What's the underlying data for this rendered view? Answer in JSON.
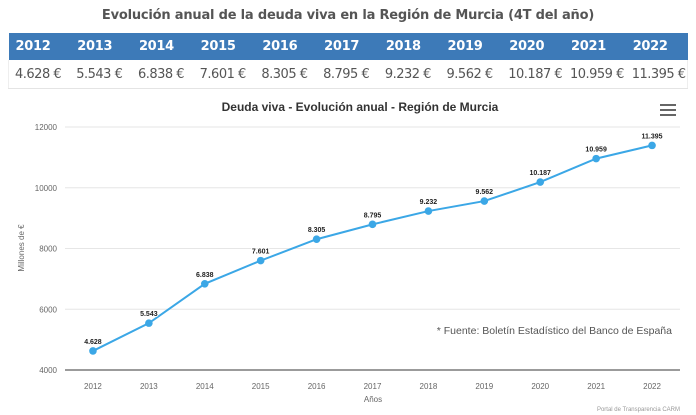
{
  "page": {
    "title": "Evolución anual de la deuda viva en la Región de Murcia (4T del año)"
  },
  "table": {
    "years": [
      "2012",
      "2013",
      "2014",
      "2015",
      "2016",
      "2017",
      "2018",
      "2019",
      "2020",
      "2021",
      "2022"
    ],
    "values": [
      "4.628 €",
      "5.543 €",
      "6.838 €",
      "7.601 €",
      "8.305 €",
      "8.795 €",
      "9.232 €",
      "9.562 €",
      "10.187 €",
      "10.959 €",
      "11.395 €"
    ],
    "header_color": "#3d7ab8"
  },
  "chart_data": {
    "type": "line",
    "title": "Deuda viva - Evolución anual - Región de Murcia",
    "xlabel": "Años",
    "ylabel": "Millones de €",
    "categories": [
      "2012",
      "2013",
      "2014",
      "2015",
      "2016",
      "2017",
      "2018",
      "2019",
      "2020",
      "2021",
      "2022"
    ],
    "series": [
      {
        "name": "Deuda viva",
        "values": [
          4628,
          5543,
          6838,
          7601,
          8305,
          8795,
          9232,
          9562,
          10187,
          10959,
          11395
        ],
        "labels": [
          "4.628",
          "5.543",
          "6.838",
          "7.601",
          "8.305",
          "8.795",
          "9.232",
          "9.562",
          "10.187",
          "10.959",
          "11.395"
        ],
        "color": "#3ba7e6"
      }
    ],
    "ylim": [
      4000,
      12000
    ],
    "yticks": [
      4000,
      6000,
      8000,
      10000,
      12000
    ],
    "grid": true,
    "legend": "none",
    "annotation": "* Fuente: Boletín Estadístico del Banco de España",
    "credits": "Portal de Transparencia CARM",
    "menu_icon": "hamburger-menu-icon"
  }
}
